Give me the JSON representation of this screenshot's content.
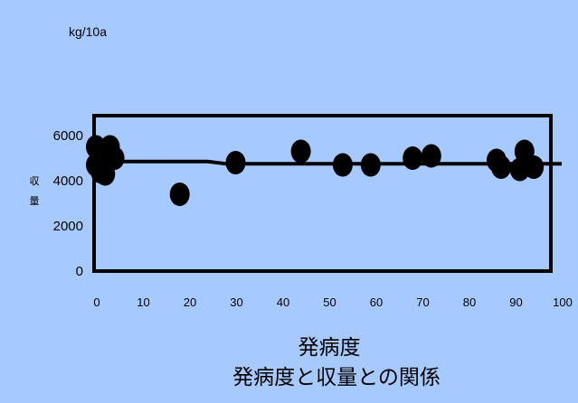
{
  "chart_data": {
    "type": "scatter",
    "title": "発病度と収量との関係",
    "xlabel": "発病度",
    "ylabel": "収量",
    "unit_label": "kg/10a",
    "xlim": [
      0,
      100
    ],
    "ylim": [
      0,
      6000
    ],
    "x_ticks": [
      "0",
      "10",
      "20",
      "30",
      "40",
      "50",
      "60",
      "70",
      "80",
      "90",
      "100"
    ],
    "y_ticks": [
      "0",
      "2000",
      "4000",
      "6000"
    ],
    "grid": false,
    "legend": "none",
    "series": [
      {
        "kind": "points",
        "points": [
          [
            0,
            5500
          ],
          [
            0,
            4700
          ],
          [
            1,
            4900
          ],
          [
            1,
            4400
          ],
          [
            2,
            4300
          ],
          [
            3,
            5500
          ],
          [
            3,
            5300
          ],
          [
            4,
            5000
          ],
          [
            18,
            3400
          ],
          [
            30,
            4800
          ],
          [
            44,
            5300
          ],
          [
            53,
            4700
          ],
          [
            59,
            4700
          ],
          [
            68,
            5000
          ],
          [
            72,
            5100
          ],
          [
            86,
            4900
          ],
          [
            87,
            4600
          ],
          [
            91,
            4500
          ],
          [
            92,
            5300
          ],
          [
            94,
            4600
          ]
        ]
      },
      {
        "kind": "trend",
        "points": [
          [
            0,
            4850
          ],
          [
            24,
            4850
          ],
          [
            28,
            4750
          ],
          [
            100,
            4750
          ]
        ]
      }
    ],
    "colors": {
      "background": "#a6cafd",
      "marker": "#000000",
      "line": "#000000"
    }
  }
}
